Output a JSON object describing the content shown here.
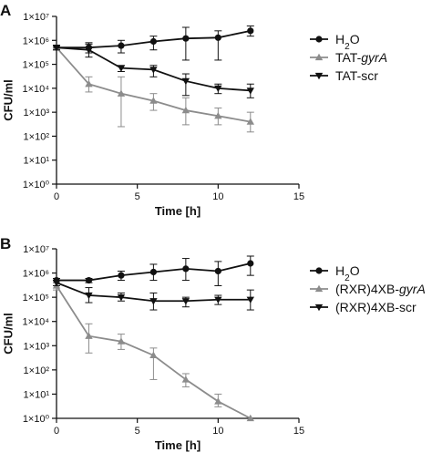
{
  "chart_data": [
    {
      "panel": "A",
      "type": "line",
      "xlabel": "Time [h]",
      "ylabel": "CFU/ml",
      "xlim": [
        0,
        15
      ],
      "ylim_log10": [
        0,
        7
      ],
      "y_scale": "log",
      "x_ticks": [
        0,
        5,
        10,
        15
      ],
      "y_tick_labels": [
        "1×10⁰",
        "1×10¹",
        "1×10²",
        "1×10³",
        "1×10⁴",
        "1×10⁵",
        "1×10⁶",
        "1×10⁷"
      ],
      "legend": "right",
      "grid": false,
      "series": [
        {
          "name": "H₂O",
          "name_plain": "H",
          "name_sub": "2",
          "name_tail": "O",
          "marker": "circle",
          "color": "#111111",
          "points": [
            {
              "x": 0,
              "y": 500000,
              "err_lo": 400000,
              "err_hi": 600000
            },
            {
              "x": 2,
              "y": 500000,
              "err_lo": 300000,
              "err_hi": 700000
            },
            {
              "x": 4,
              "y": 600000,
              "err_lo": 300000,
              "err_hi": 1000000
            },
            {
              "x": 6,
              "y": 900000,
              "err_lo": 400000,
              "err_hi": 1500000
            },
            {
              "x": 8,
              "y": 1200000,
              "err_lo": 150000,
              "err_hi": 3500000
            },
            {
              "x": 10,
              "y": 1300000,
              "err_lo": 150000,
              "err_hi": 2500000
            },
            {
              "x": 12,
              "y": 2500000,
              "err_lo": 1500000,
              "err_hi": 4000000
            }
          ]
        },
        {
          "name": "TAT-gyrA",
          "name_plain": "TAT-",
          "name_italic": "gyrA",
          "marker": "triangle-up",
          "color": "#8c8c8c",
          "points": [
            {
              "x": 0,
              "y": 500000,
              "err_lo": 400000,
              "err_hi": 600000
            },
            {
              "x": 2,
              "y": 15000,
              "err_lo": 7000,
              "err_hi": 30000
            },
            {
              "x": 4,
              "y": 6000,
              "err_lo": 250,
              "err_hi": 30000
            },
            {
              "x": 6,
              "y": 3000,
              "err_lo": 1200,
              "err_hi": 6000
            },
            {
              "x": 8,
              "y": 1200,
              "err_lo": 300,
              "err_hi": 4000
            },
            {
              "x": 10,
              "y": 700,
              "err_lo": 300,
              "err_hi": 1500
            },
            {
              "x": 12,
              "y": 400,
              "err_lo": 150,
              "err_hi": 1000
            }
          ]
        },
        {
          "name": "TAT-scr",
          "name_plain": "TAT-scr",
          "marker": "triangle-down",
          "color": "#111111",
          "points": [
            {
              "x": 0,
              "y": 500000,
              "err_lo": 400000,
              "err_hi": 600000
            },
            {
              "x": 2,
              "y": 400000,
              "err_lo": 200000,
              "err_hi": 800000
            },
            {
              "x": 4,
              "y": 70000,
              "err_lo": 50000,
              "err_hi": 90000
            },
            {
              "x": 6,
              "y": 60000,
              "err_lo": 30000,
              "err_hi": 90000
            },
            {
              "x": 8,
              "y": 20000,
              "err_lo": 5000,
              "err_hi": 40000
            },
            {
              "x": 10,
              "y": 10000,
              "err_lo": 6000,
              "err_hi": 15000
            },
            {
              "x": 12,
              "y": 8000,
              "err_lo": 4000,
              "err_hi": 15000
            }
          ]
        }
      ]
    },
    {
      "panel": "B",
      "type": "line",
      "xlabel": "Time [h]",
      "ylabel": "CFU/ml",
      "xlim": [
        0,
        15
      ],
      "ylim_log10": [
        0,
        7
      ],
      "y_scale": "log",
      "x_ticks": [
        0,
        5,
        10,
        15
      ],
      "y_tick_labels": [
        "1×10⁰",
        "1×10¹",
        "1×10²",
        "1×10³",
        "1×10⁴",
        "1×10⁵",
        "1×10⁶",
        "1×10⁷"
      ],
      "legend": "right",
      "grid": false,
      "series": [
        {
          "name": "H₂O",
          "name_plain": "H",
          "name_sub": "2",
          "name_tail": "O",
          "marker": "circle",
          "color": "#111111",
          "points": [
            {
              "x": 0,
              "y": 500000,
              "err_lo": 400000,
              "err_hi": 600000
            },
            {
              "x": 2,
              "y": 500000,
              "err_lo": 400000,
              "err_hi": 600000
            },
            {
              "x": 4,
              "y": 800000,
              "err_lo": 500000,
              "err_hi": 1200000
            },
            {
              "x": 6,
              "y": 1100000,
              "err_lo": 500000,
              "err_hi": 2300000
            },
            {
              "x": 8,
              "y": 1500000,
              "err_lo": 500000,
              "err_hi": 4000000
            },
            {
              "x": 10,
              "y": 1200000,
              "err_lo": 300000,
              "err_hi": 3000000
            },
            {
              "x": 12,
              "y": 2500000,
              "err_lo": 800000,
              "err_hi": 5000000
            }
          ]
        },
        {
          "name": "(RXR)4XB-gyrA",
          "name_plain": "(RXR)4XB-",
          "name_italic": "gyrA",
          "marker": "triangle-up",
          "color": "#8c8c8c",
          "points": [
            {
              "x": 0,
              "y": 300000,
              "err_lo": 200000,
              "err_hi": 400000
            },
            {
              "x": 2,
              "y": 2500,
              "err_lo": 500,
              "err_hi": 8000
            },
            {
              "x": 4,
              "y": 1500,
              "err_lo": 700,
              "err_hi": 3000
            },
            {
              "x": 6,
              "y": 400,
              "err_lo": 40,
              "err_hi": 800
            },
            {
              "x": 8,
              "y": 40,
              "err_lo": 20,
              "err_hi": 70
            },
            {
              "x": 10,
              "y": 5,
              "err_lo": 3,
              "err_hi": 10
            },
            {
              "x": 12,
              "y": 1,
              "err_lo": 1,
              "err_hi": 1
            }
          ]
        },
        {
          "name": "(RXR)4XB-scr",
          "name_plain": "(RXR)4XB-scr",
          "marker": "triangle-down",
          "color": "#111111",
          "points": [
            {
              "x": 0,
              "y": 400000,
              "err_lo": 300000,
              "err_hi": 500000
            },
            {
              "x": 2,
              "y": 120000,
              "err_lo": 60000,
              "err_hi": 250000
            },
            {
              "x": 4,
              "y": 100000,
              "err_lo": 70000,
              "err_hi": 150000
            },
            {
              "x": 6,
              "y": 70000,
              "err_lo": 30000,
              "err_hi": 150000
            },
            {
              "x": 8,
              "y": 70000,
              "err_lo": 40000,
              "err_hi": 100000
            },
            {
              "x": 10,
              "y": 80000,
              "err_lo": 50000,
              "err_hi": 120000
            },
            {
              "x": 12,
              "y": 80000,
              "err_lo": 30000,
              "err_hi": 200000
            }
          ]
        }
      ]
    }
  ]
}
